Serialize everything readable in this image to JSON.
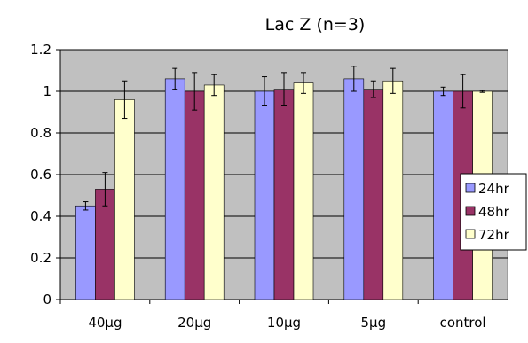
{
  "chart_data": {
    "type": "bar",
    "title": "Lac Z (n=3)",
    "xlabel": "",
    "ylabel": "",
    "categories": [
      "40μg",
      "20μg",
      "10μg",
      "5μg",
      "control"
    ],
    "ylim": [
      0,
      1.2
    ],
    "yticks": [
      "0",
      "0.2",
      "0.4",
      "0.6",
      "0.8",
      "1",
      "1.2"
    ],
    "series": [
      {
        "name": "24hr",
        "color": "#9999FF",
        "values": [
          0.45,
          1.06,
          1.0,
          1.06,
          1.0
        ],
        "errors": [
          0.02,
          0.05,
          0.07,
          0.06,
          0.02
        ]
      },
      {
        "name": "48hr",
        "color": "#993366",
        "values": [
          0.53,
          1.0,
          1.01,
          1.01,
          1.0
        ],
        "errors": [
          0.08,
          0.09,
          0.08,
          0.04,
          0.08
        ]
      },
      {
        "name": "72hr",
        "color": "#FFFFCC",
        "values": [
          0.96,
          1.03,
          1.04,
          1.05,
          1.0
        ],
        "errors": [
          0.09,
          0.05,
          0.05,
          0.06,
          0.005
        ]
      }
    ],
    "grid": "horizontal",
    "plot_background": "#C0C0C0",
    "legend_position": "right"
  }
}
